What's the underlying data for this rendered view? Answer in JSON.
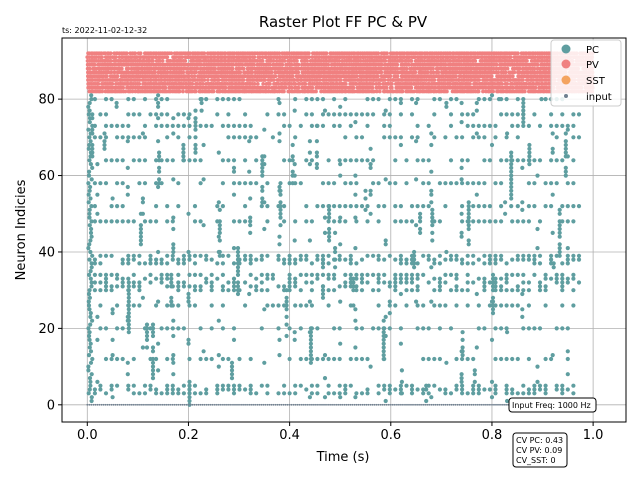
{
  "chart_data": {
    "type": "scatter",
    "title": "Raster Plot FF PC & PV",
    "timestamp": "ts: 2022-11-02-12-32",
    "xlabel": "Time (s)",
    "ylabel": "Neuron Indicies",
    "xlim": [
      -0.05,
      1.065
    ],
    "ylim": [
      -4.5,
      96
    ],
    "xticks": [
      "0.0",
      "0.2",
      "0.4",
      "0.6",
      "0.8",
      "1.0"
    ],
    "xtick_values": [
      0.0,
      0.2,
      0.4,
      0.6,
      0.8,
      1.0
    ],
    "yticks": [
      "0",
      "20",
      "40",
      "60",
      "80"
    ],
    "ytick_values": [
      0,
      20,
      40,
      60,
      80
    ],
    "grid": true,
    "legend_position": "top-right",
    "series": [
      {
        "name": "PC",
        "color": "#5f9ea0",
        "neuron_range": [
          0,
          81
        ],
        "time_range": [
          0.0,
          0.98
        ],
        "dense_rows": [
          3,
          4,
          5,
          12,
          20,
          26,
          30,
          31,
          32,
          33,
          34,
          37,
          38,
          39,
          48,
          52,
          58,
          64,
          70,
          73,
          76,
          80
        ]
      },
      {
        "name": "PV",
        "color": "#f08080",
        "neuron_range": [
          82,
          92
        ],
        "time_range": [
          0.0,
          1.0
        ]
      },
      {
        "name": "SST",
        "color": "#f4a460"
      },
      {
        "name": "input",
        "color": "#708090",
        "neuron_range": [
          0,
          0
        ],
        "time_range": [
          0.0,
          1.0
        ]
      }
    ],
    "annotations": {
      "input_freq": "Input Freq: 1000 Hz",
      "cv_pc": "CV PC: 0.43",
      "cv_pv": "CV PV: 0.09",
      "cv_sst": "CV_SST: 0"
    }
  }
}
